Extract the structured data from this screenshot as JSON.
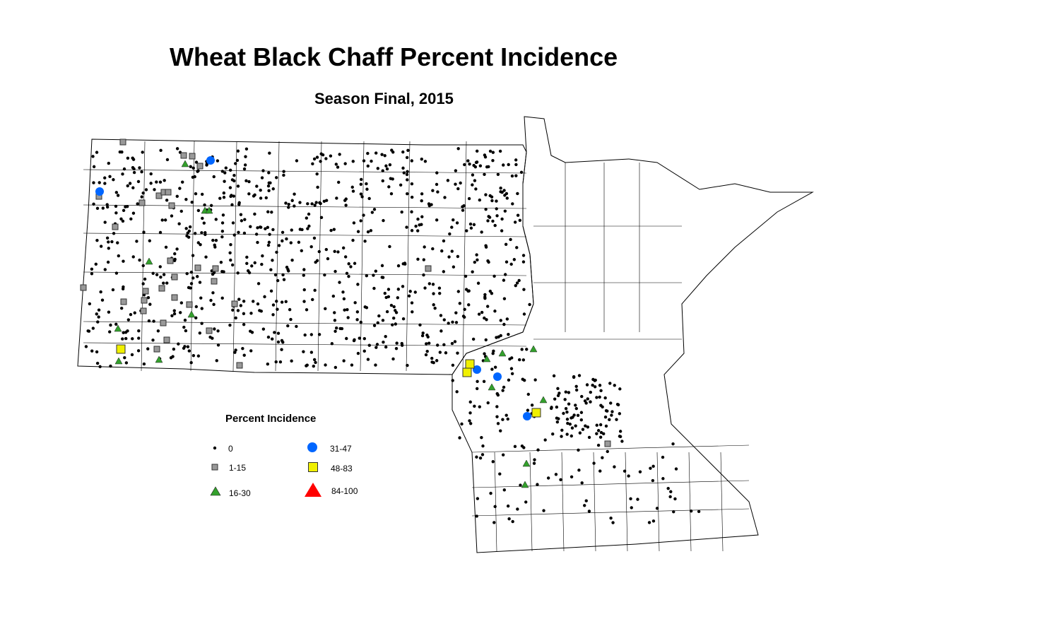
{
  "title": "Wheat Black Chaff Percent Incidence",
  "subtitle": "Season Final, 2015",
  "legend": {
    "title": "Percent Incidence",
    "items": [
      {
        "label": "0",
        "shape": "dot",
        "color": "#000000"
      },
      {
        "label": "1-15",
        "shape": "square",
        "color": "#999999"
      },
      {
        "label": "16-30",
        "shape": "triangle",
        "color": "#33a02c"
      },
      {
        "label": "31-47",
        "shape": "circle",
        "color": "#0066ff"
      },
      {
        "label": "48-83",
        "shape": "square",
        "color": "#f0f000"
      },
      {
        "label": "84-100",
        "shape": "triangle",
        "color": "#ff0000"
      }
    ]
  }
}
